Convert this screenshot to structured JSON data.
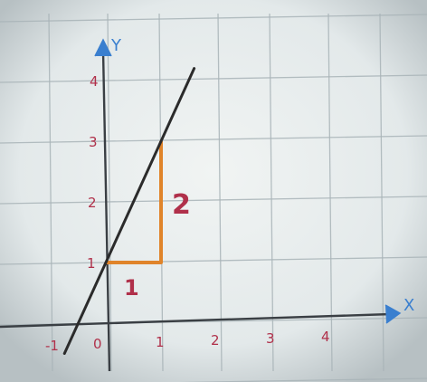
{
  "graph": {
    "x_axis_label": "X",
    "y_axis_label": "Y",
    "x_ticks": [
      {
        "value": -1,
        "text": "-1"
      },
      {
        "value": 0,
        "text": "0"
      },
      {
        "value": 1,
        "text": "1"
      },
      {
        "value": 2,
        "text": "2"
      },
      {
        "value": 3,
        "text": "3"
      },
      {
        "value": 4,
        "text": "4"
      }
    ],
    "y_ticks": [
      {
        "value": 1,
        "text": "1"
      },
      {
        "value": 2,
        "text": "2"
      },
      {
        "value": 3,
        "text": "3"
      },
      {
        "value": 4,
        "text": "4"
      }
    ],
    "line": {
      "slope": 2,
      "intercept": 1,
      "x_range": [
        -0.75,
        1.6
      ],
      "color": "#2b2b2b"
    },
    "slope_triangle": {
      "from": [
        0,
        1
      ],
      "corner": [
        1,
        1
      ],
      "to": [
        1,
        3
      ],
      "run_label": "1",
      "rise_label": "2",
      "color": "#e0842a"
    },
    "colors": {
      "paper": "#e9eeee",
      "grid": "#a9b4b8",
      "axis": "#3a3f44",
      "x_axis_arrow": "#3a7fcf",
      "y_axis_arrow": "#3a7fcf",
      "tick_labels": "#b0304a",
      "triangle_labels": "#b0304a"
    }
  }
}
